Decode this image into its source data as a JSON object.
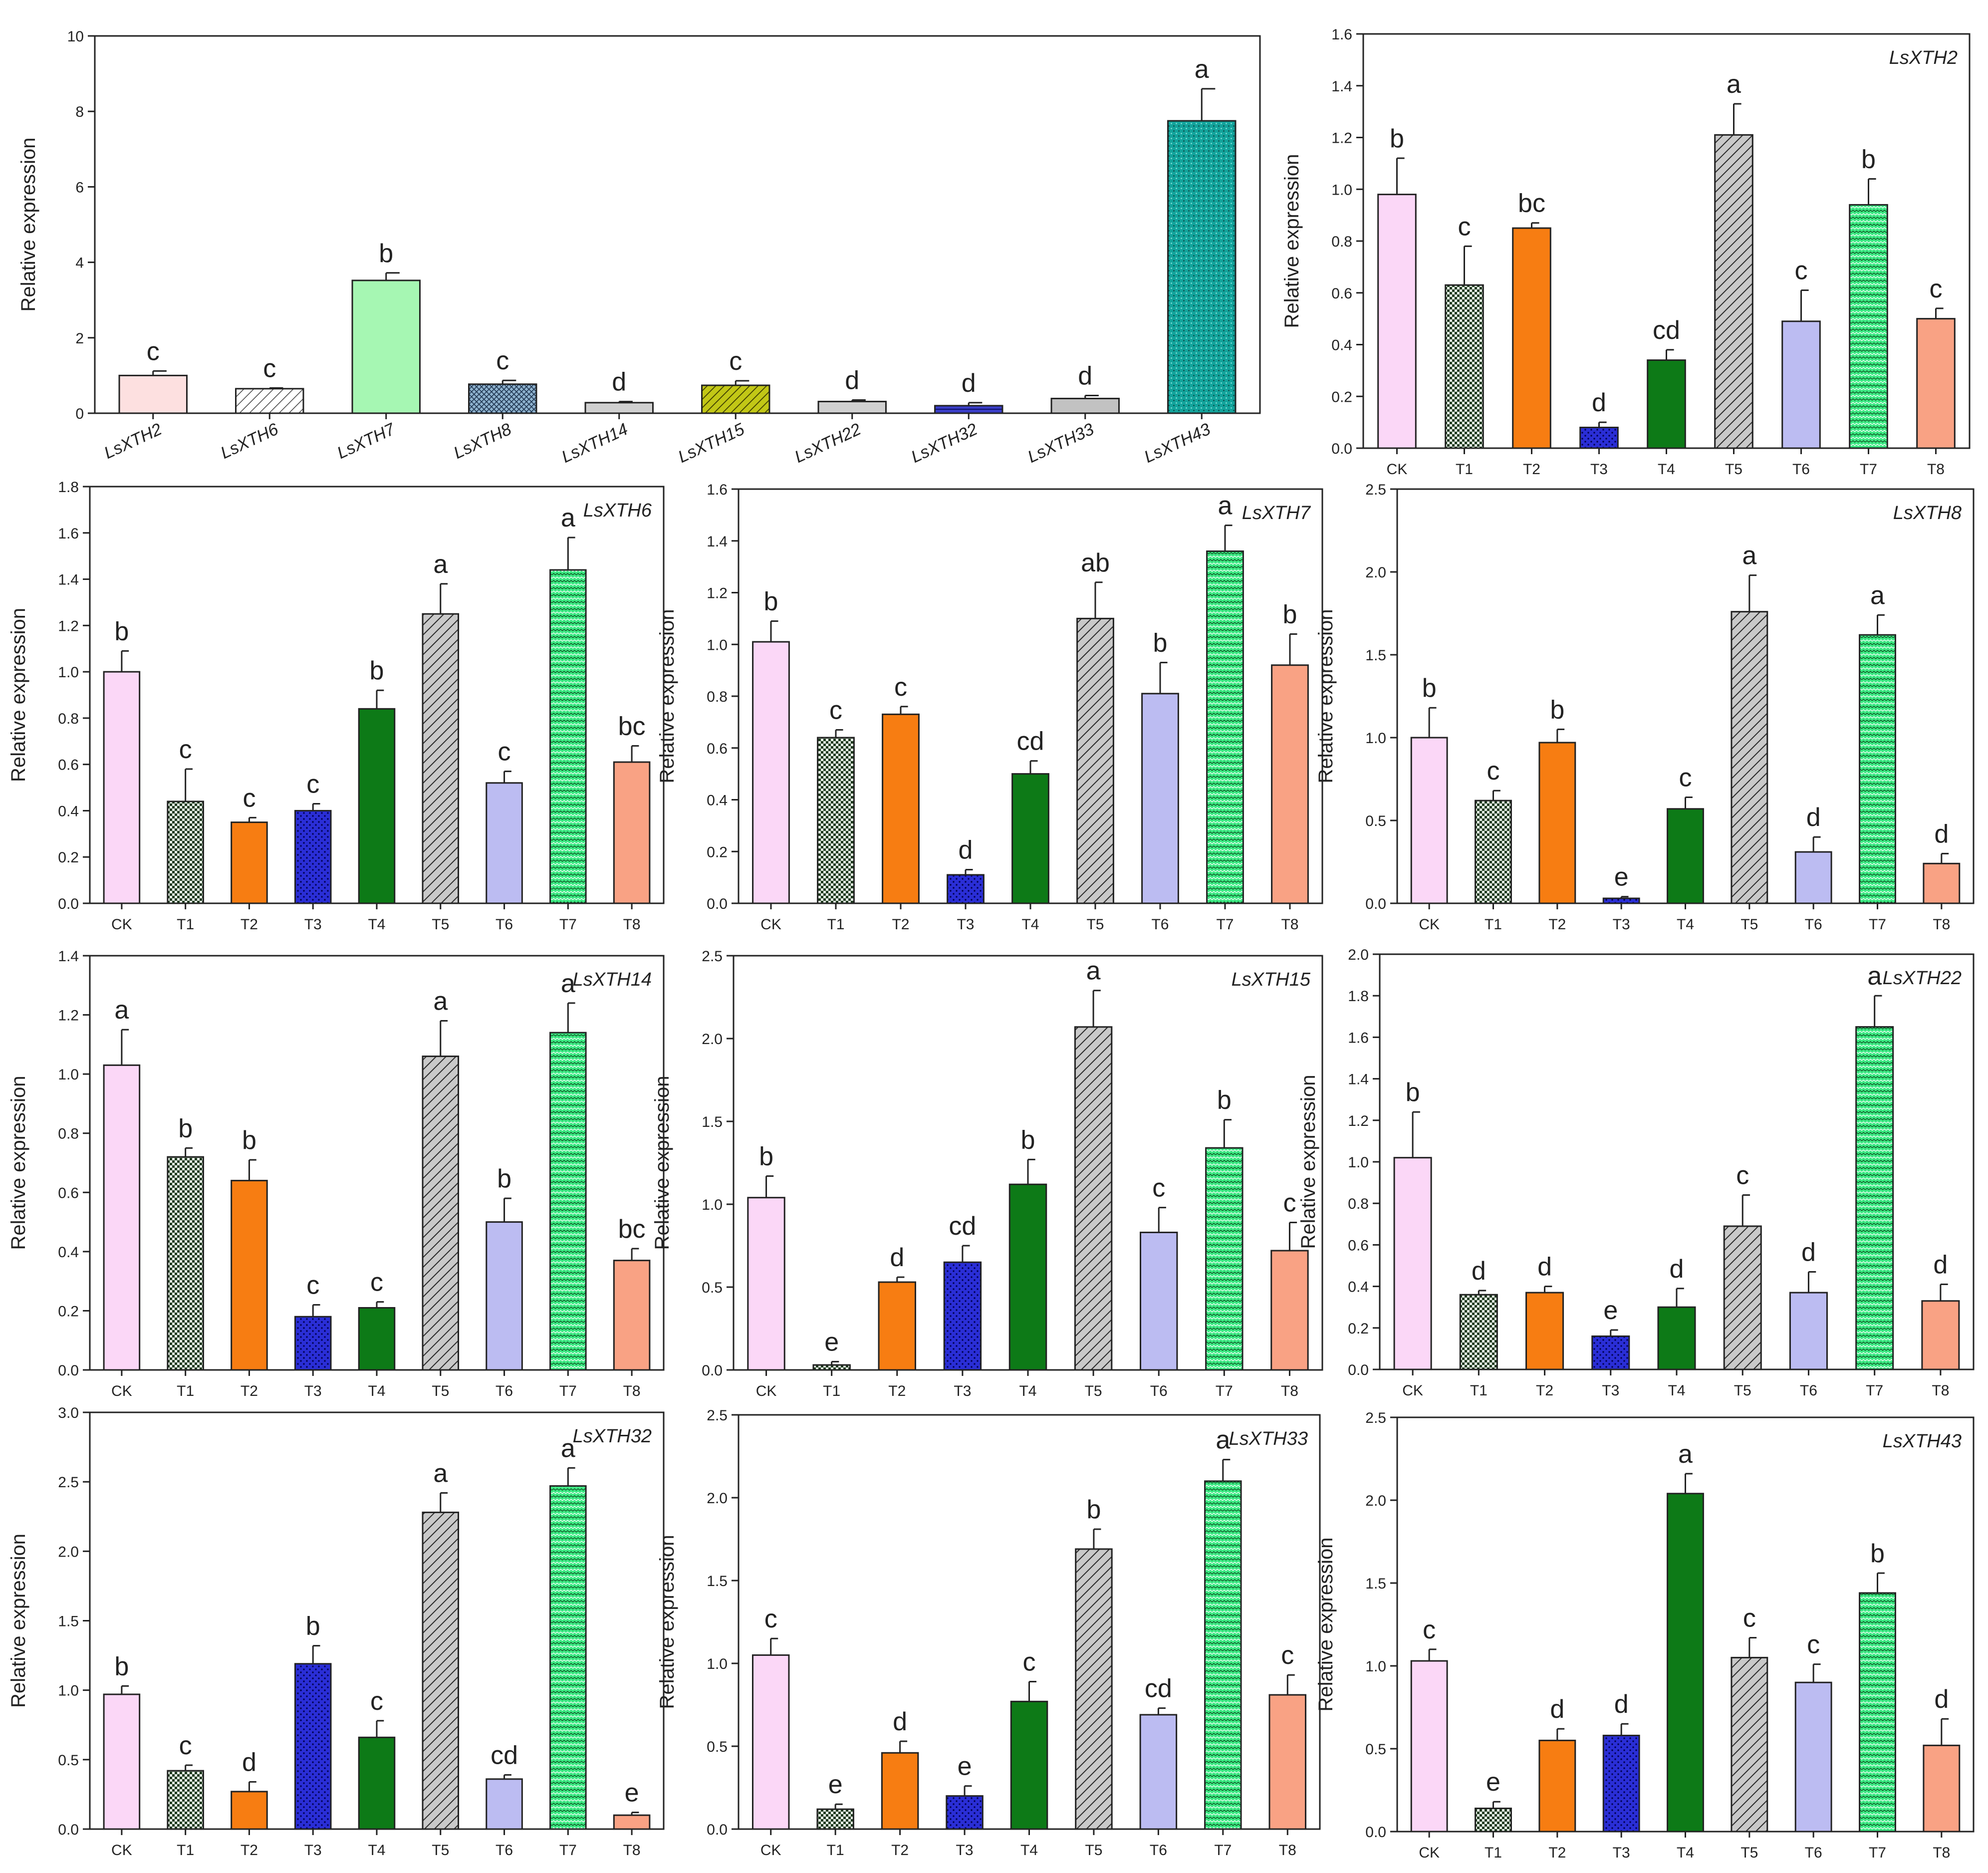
{
  "figure": {
    "ylabel": "Relative expression",
    "treatments": [
      "CK",
      "T1",
      "T2",
      "T3",
      "T4",
      "T5",
      "T6",
      "T7",
      "T8"
    ]
  },
  "colors": {
    "CK": "#fbd7f7",
    "T1": "#cfe6cf",
    "T2": "#f77d12",
    "T3": "#2a2ed6",
    "T4": "#0d7a17",
    "T5": "#c2c2c2",
    "T6": "#bcbcf2",
    "T7": "#3ce882",
    "T8": "#f9a284"
  },
  "chart_data": [
    {
      "type": "bar",
      "title": "",
      "xlabel": "",
      "ylabel": "Relative expression",
      "categories": [
        "LsXTH2",
        "LsXTH6",
        "LsXTH7",
        "LsXTH8",
        "LsXTH14",
        "LsXTH15",
        "LsXTH22",
        "LsXTH32",
        "LsXTH33",
        "LsXTH43"
      ],
      "values": [
        1.0,
        0.65,
        3.52,
        0.77,
        0.28,
        0.74,
        0.31,
        0.2,
        0.39,
        7.75
      ],
      "errors": [
        0.12,
        0.02,
        0.2,
        0.1,
        0.03,
        0.12,
        0.04,
        0.08,
        0.08,
        0.85
      ],
      "letters": [
        "c",
        "c",
        "b",
        "c",
        "d",
        "c",
        "d",
        "d",
        "d",
        "a"
      ],
      "colors": [
        "#fde0e0",
        "#ffffff",
        "#a6f7b3",
        "#8fb3cf",
        "#d0d0d0",
        "#a8ad12",
        "#d0d0d0",
        "#2a2ed6",
        "#c2c2c2",
        "#13a39b"
      ],
      "ylim": [
        0,
        10
      ],
      "yticks": [
        0,
        2,
        4,
        6,
        8,
        10
      ],
      "decimals": 0
    },
    {
      "type": "bar",
      "title": "LsXTH2",
      "xlabel": "",
      "ylabel": "Relative expression",
      "categories": [
        "CK",
        "T1",
        "T2",
        "T3",
        "T4",
        "T5",
        "T6",
        "T7",
        "T8"
      ],
      "values": [
        0.98,
        0.63,
        0.85,
        0.08,
        0.34,
        1.21,
        0.49,
        0.94,
        0.5
      ],
      "errors": [
        0.14,
        0.15,
        0.02,
        0.02,
        0.04,
        0.12,
        0.12,
        0.1,
        0.04
      ],
      "letters": [
        "b",
        "c",
        "bc",
        "d",
        "cd",
        "a",
        "c",
        "b",
        "c"
      ],
      "ylim": [
        0,
        1.6
      ],
      "yticks": [
        0,
        0.2,
        0.4,
        0.6,
        0.8,
        1.0,
        1.2,
        1.4,
        1.6
      ],
      "decimals": 1
    },
    {
      "type": "bar",
      "title": "LsXTH6",
      "xlabel": "",
      "ylabel": "Relative expression",
      "categories": [
        "CK",
        "T1",
        "T2",
        "T3",
        "T4",
        "T5",
        "T6",
        "T7",
        "T8"
      ],
      "values": [
        1.0,
        0.44,
        0.35,
        0.4,
        0.84,
        1.25,
        0.52,
        1.44,
        0.61
      ],
      "errors": [
        0.09,
        0.14,
        0.02,
        0.03,
        0.08,
        0.13,
        0.05,
        0.14,
        0.07
      ],
      "letters": [
        "b",
        "c",
        "c",
        "c",
        "b",
        "a",
        "c",
        "a",
        "bc"
      ],
      "ylim": [
        0,
        1.8
      ],
      "yticks": [
        0,
        0.2,
        0.4,
        0.6,
        0.8,
        1.0,
        1.2,
        1.4,
        1.6,
        1.8
      ],
      "decimals": 1
    },
    {
      "type": "bar",
      "title": "LsXTH7",
      "xlabel": "",
      "ylabel": "Relative expression",
      "categories": [
        "CK",
        "T1",
        "T2",
        "T3",
        "T4",
        "T5",
        "T6",
        "T7",
        "T8"
      ],
      "values": [
        1.01,
        0.64,
        0.73,
        0.11,
        0.5,
        1.1,
        0.81,
        1.36,
        0.92
      ],
      "errors": [
        0.08,
        0.03,
        0.03,
        0.02,
        0.05,
        0.14,
        0.12,
        0.1,
        0.12
      ],
      "letters": [
        "b",
        "c",
        "c",
        "d",
        "cd",
        "ab",
        "b",
        "a",
        "b"
      ],
      "ylim": [
        0,
        1.6
      ],
      "yticks": [
        0,
        0.2,
        0.4,
        0.6,
        0.8,
        1.0,
        1.2,
        1.4,
        1.6
      ],
      "decimals": 1
    },
    {
      "type": "bar",
      "title": "LsXTH8",
      "xlabel": "",
      "ylabel": "Relative expression",
      "categories": [
        "CK",
        "T1",
        "T2",
        "T3",
        "T4",
        "T5",
        "T6",
        "T7",
        "T8"
      ],
      "values": [
        1.0,
        0.62,
        0.97,
        0.03,
        0.57,
        1.76,
        0.31,
        1.62,
        0.24
      ],
      "errors": [
        0.18,
        0.06,
        0.08,
        0.01,
        0.07,
        0.22,
        0.09,
        0.12,
        0.06
      ],
      "letters": [
        "b",
        "c",
        "b",
        "e",
        "c",
        "a",
        "d",
        "a",
        "d"
      ],
      "ylim": [
        0,
        2.5
      ],
      "yticks": [
        0,
        0.5,
        1.0,
        1.5,
        2.0,
        2.5
      ],
      "decimals": 1
    },
    {
      "type": "bar",
      "title": "LsXTH14",
      "xlabel": "",
      "ylabel": "Relative expression",
      "categories": [
        "CK",
        "T1",
        "T2",
        "T3",
        "T4",
        "T5",
        "T6",
        "T7",
        "T8"
      ],
      "values": [
        1.03,
        0.72,
        0.64,
        0.18,
        0.21,
        1.06,
        0.5,
        1.14,
        0.37
      ],
      "errors": [
        0.12,
        0.03,
        0.07,
        0.04,
        0.02,
        0.12,
        0.08,
        0.1,
        0.04
      ],
      "letters": [
        "a",
        "b",
        "b",
        "c",
        "c",
        "a",
        "b",
        "a",
        "bc"
      ],
      "ylim": [
        0,
        1.4
      ],
      "yticks": [
        0,
        0.2,
        0.4,
        0.6,
        0.8,
        1.0,
        1.2,
        1.4
      ],
      "decimals": 1
    },
    {
      "type": "bar",
      "title": "LsXTH15",
      "xlabel": "",
      "ylabel": "Relative expression",
      "categories": [
        "CK",
        "T1",
        "T2",
        "T3",
        "T4",
        "T5",
        "T6",
        "T7",
        "T8"
      ],
      "values": [
        1.04,
        0.03,
        0.53,
        0.65,
        1.12,
        2.07,
        0.83,
        1.34,
        0.72
      ],
      "errors": [
        0.13,
        0.02,
        0.03,
        0.1,
        0.15,
        0.22,
        0.15,
        0.17,
        0.17
      ],
      "letters": [
        "b",
        "e",
        "d",
        "cd",
        "b",
        "a",
        "c",
        "b",
        "c"
      ],
      "ylim": [
        0,
        2.5
      ],
      "yticks": [
        0,
        0.5,
        1.0,
        1.5,
        2.0,
        2.5
      ],
      "decimals": 1
    },
    {
      "type": "bar",
      "title": "LsXTH22",
      "xlabel": "",
      "ylabel": "Relative expression",
      "categories": [
        "CK",
        "T1",
        "T2",
        "T3",
        "T4",
        "T5",
        "T6",
        "T7",
        "T8"
      ],
      "values": [
        1.02,
        0.36,
        0.37,
        0.16,
        0.3,
        0.69,
        0.37,
        1.65,
        0.33
      ],
      "errors": [
        0.22,
        0.02,
        0.03,
        0.03,
        0.09,
        0.15,
        0.1,
        0.15,
        0.08
      ],
      "letters": [
        "b",
        "d",
        "d",
        "e",
        "d",
        "c",
        "d",
        "a",
        "d"
      ],
      "ylim": [
        0,
        2.0
      ],
      "yticks": [
        0,
        0.2,
        0.4,
        0.6,
        0.8,
        1.0,
        1.2,
        1.4,
        1.6,
        1.8,
        2.0
      ],
      "decimals": 1
    },
    {
      "type": "bar",
      "title": "LsXTH32",
      "xlabel": "",
      "ylabel": "Relative expression",
      "categories": [
        "CK",
        "T1",
        "T2",
        "T3",
        "T4",
        "T5",
        "T6",
        "T7",
        "T8"
      ],
      "values": [
        0.97,
        0.42,
        0.27,
        1.19,
        0.66,
        2.28,
        0.36,
        2.47,
        0.1
      ],
      "errors": [
        0.06,
        0.04,
        0.07,
        0.13,
        0.12,
        0.14,
        0.03,
        0.13,
        0.02
      ],
      "letters": [
        "b",
        "c",
        "d",
        "b",
        "c",
        "a",
        "cd",
        "a",
        "e"
      ],
      "ylim": [
        0,
        3.0
      ],
      "yticks": [
        0,
        0.5,
        1.0,
        1.5,
        2.0,
        2.5,
        3.0
      ],
      "decimals": 1
    },
    {
      "type": "bar",
      "title": "LsXTH33",
      "xlabel": "",
      "ylabel": "Relative expression",
      "categories": [
        "CK",
        "T1",
        "T2",
        "T3",
        "T4",
        "T5",
        "T6",
        "T7",
        "T8"
      ],
      "values": [
        1.05,
        0.12,
        0.46,
        0.2,
        0.77,
        1.69,
        0.69,
        2.1,
        0.81
      ],
      "errors": [
        0.1,
        0.03,
        0.07,
        0.06,
        0.12,
        0.12,
        0.04,
        0.13,
        0.12
      ],
      "letters": [
        "c",
        "e",
        "d",
        "e",
        "c",
        "b",
        "cd",
        "a",
        "c"
      ],
      "ylim": [
        0,
        2.5
      ],
      "yticks": [
        0,
        0.5,
        1.0,
        1.5,
        2.0,
        2.5
      ],
      "decimals": 1
    },
    {
      "type": "bar",
      "title": "LsXTH43",
      "xlabel": "",
      "ylabel": "Relative expression",
      "categories": [
        "CK",
        "T1",
        "T2",
        "T3",
        "T4",
        "T5",
        "T6",
        "T7",
        "T8"
      ],
      "values": [
        1.03,
        0.14,
        0.55,
        0.58,
        2.04,
        1.05,
        0.9,
        1.44,
        0.52
      ],
      "errors": [
        0.07,
        0.04,
        0.07,
        0.07,
        0.12,
        0.12,
        0.11,
        0.12,
        0.16
      ],
      "letters": [
        "c",
        "e",
        "d",
        "d",
        "a",
        "c",
        "c",
        "b",
        "d"
      ],
      "ylim": [
        0,
        2.5
      ],
      "yticks": [
        0,
        0.5,
        1.0,
        1.5,
        2.0,
        2.5
      ],
      "decimals": 1
    }
  ]
}
